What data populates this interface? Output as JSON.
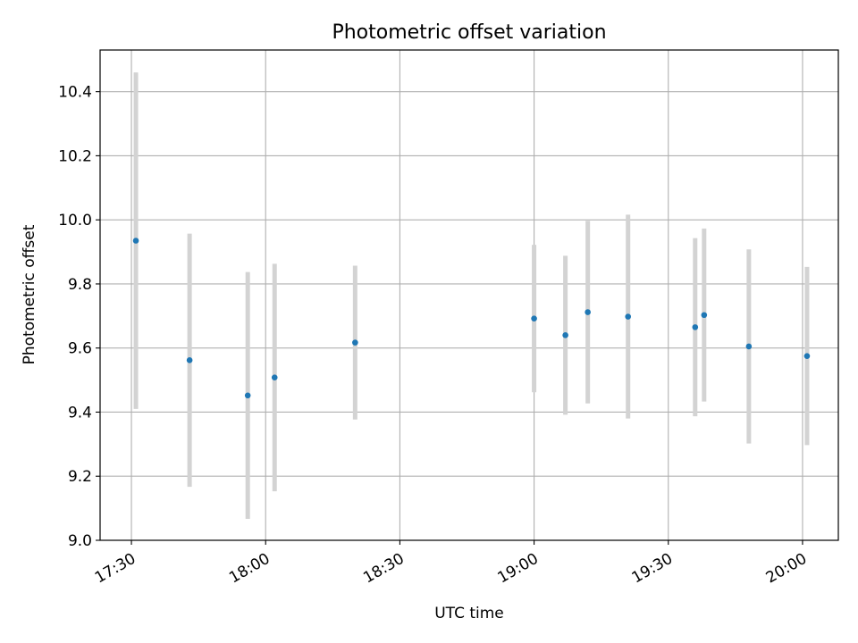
{
  "chart_data": {
    "type": "scatter",
    "title": "Photometric offset variation",
    "xlabel": "UTC time",
    "ylabel": "Photometric offset",
    "x_ticks": [
      "17:30",
      "18:00",
      "18:30",
      "19:00",
      "19:30",
      "20:00"
    ],
    "y_ticks": [
      "9.0",
      "9.2",
      "9.4",
      "9.6",
      "9.8",
      "10.0",
      "10.2",
      "10.4"
    ],
    "xlim": [
      "17:23",
      "20:08"
    ],
    "ylim": [
      9.0,
      10.53
    ],
    "grid": true,
    "colors": {
      "marker": "#1f77b4",
      "errorbar": "#d3d3d3",
      "grid": "#b0b0b0"
    },
    "points": [
      {
        "time": "17:31",
        "y": 9.935,
        "yerr": 0.525
      },
      {
        "time": "17:43",
        "y": 9.562,
        "yerr": 0.395
      },
      {
        "time": "17:56",
        "y": 9.452,
        "yerr": 0.385
      },
      {
        "time": "18:02",
        "y": 9.508,
        "yerr": 0.355
      },
      {
        "time": "18:20",
        "y": 9.617,
        "yerr": 0.24
      },
      {
        "time": "19:00",
        "y": 9.692,
        "yerr": 0.23
      },
      {
        "time": "19:07",
        "y": 9.64,
        "yerr": 0.248
      },
      {
        "time": "19:12",
        "y": 9.712,
        "yerr": 0.285
      },
      {
        "time": "19:21",
        "y": 9.698,
        "yerr": 0.318
      },
      {
        "time": "19:36",
        "y": 9.665,
        "yerr": 0.278
      },
      {
        "time": "19:38",
        "y": 9.703,
        "yerr": 0.27
      },
      {
        "time": "19:48",
        "y": 9.605,
        "yerr": 0.303
      },
      {
        "time": "20:01",
        "y": 9.575,
        "yerr": 0.278
      }
    ]
  }
}
